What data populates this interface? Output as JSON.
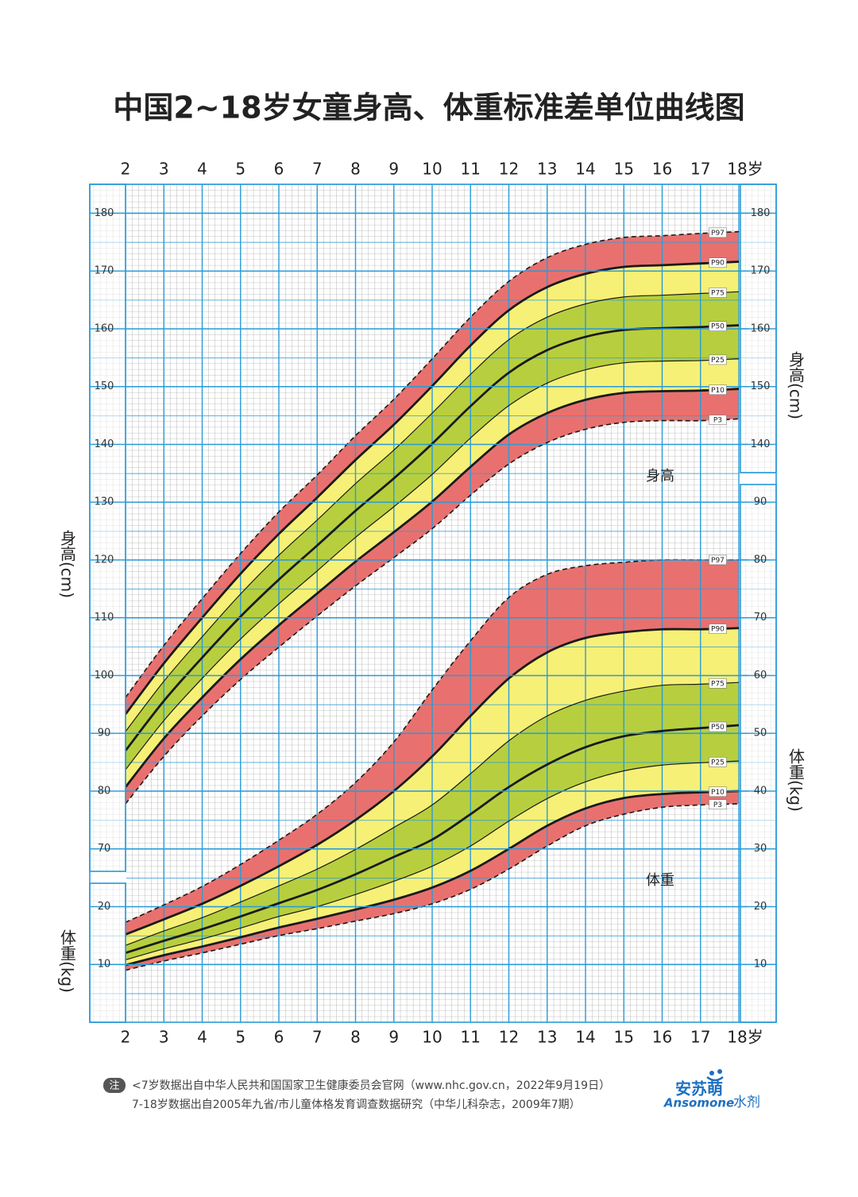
{
  "chart_data": [
    {
      "type": "line",
      "title": "中国2~18岁女童身高、体重标准差单位曲线图",
      "x": [
        2,
        3,
        4,
        5,
        6,
        7,
        8,
        9,
        10,
        11,
        12,
        13,
        14,
        15,
        16,
        17,
        18
      ],
      "xlim": [
        2,
        18
      ],
      "xticks": [
        2,
        3,
        4,
        5,
        6,
        7,
        8,
        9,
        10,
        11,
        12,
        13,
        14,
        15,
        16,
        17,
        {
          "value": 18,
          "label": "18岁"
        }
      ],
      "y_label": "身高(cm)",
      "annotation": "身高",
      "ylim": [
        40,
        185
      ],
      "yticks": [
        70,
        80,
        90,
        100,
        110,
        120,
        130,
        140,
        150,
        160,
        170,
        180
      ],
      "y2lim": [
        40,
        185
      ],
      "y2ticks": [
        140,
        150,
        160,
        170,
        180
      ],
      "grid": true,
      "series": [
        {
          "name": "P97",
          "color": "#1a1a1a",
          "style": "dashed",
          "fill": "#e8716f",
          "values": [
            96.2,
            105.2,
            113.3,
            121.1,
            128.3,
            134.7,
            141.5,
            147.8,
            154.8,
            162.0,
            168.2,
            172.3,
            174.6,
            175.8,
            176.1,
            176.5,
            176.8
          ]
        },
        {
          "name": "P90",
          "color": "#1a1a1a",
          "style": "thick",
          "fill": "#f7f076",
          "values": [
            93.3,
            102.1,
            110.0,
            117.6,
            124.5,
            130.8,
            137.3,
            143.4,
            150.1,
            157.1,
            163.2,
            167.2,
            169.5,
            170.7,
            171.0,
            171.3,
            171.6
          ]
        },
        {
          "name": "P75",
          "color": "#1a1a1a",
          "style": "thin",
          "fill": "#b7cf3e",
          "values": [
            90.3,
            99.0,
            106.7,
            114.1,
            120.8,
            126.9,
            133.2,
            139.0,
            145.4,
            152.1,
            158.1,
            162.0,
            164.3,
            165.5,
            165.8,
            166.1,
            166.4
          ]
        },
        {
          "name": "P50",
          "color": "#1a1a1a",
          "style": "thick",
          "fill": "#b7cf3e",
          "values": [
            87.0,
            95.6,
            103.1,
            110.2,
            116.6,
            122.5,
            128.5,
            134.1,
            140.1,
            146.6,
            152.4,
            156.3,
            158.6,
            159.8,
            160.1,
            160.3,
            160.6
          ]
        },
        {
          "name": "P25",
          "color": "#1a1a1a",
          "style": "thin",
          "fill": "#f7f076",
          "values": [
            83.7,
            92.2,
            99.5,
            106.3,
            112.4,
            118.1,
            123.9,
            129.2,
            134.8,
            141.1,
            146.7,
            150.6,
            152.9,
            154.1,
            154.4,
            154.5,
            154.8
          ]
        },
        {
          "name": "P10",
          "color": "#1a1a1a",
          "style": "thick",
          "fill": "#e8716f",
          "values": [
            80.7,
            89.1,
            96.2,
            102.8,
            108.7,
            114.2,
            119.7,
            124.8,
            130.1,
            136.1,
            141.7,
            145.4,
            147.7,
            148.9,
            149.2,
            149.3,
            149.6
          ]
        },
        {
          "name": "P3",
          "color": "#1a1a1a",
          "style": "dashed",
          "values": [
            77.8,
            86.0,
            93.0,
            99.3,
            104.9,
            110.3,
            115.5,
            120.4,
            125.4,
            131.2,
            136.6,
            140.3,
            142.6,
            143.8,
            144.1,
            144.1,
            144.4
          ]
        }
      ]
    },
    {
      "type": "line",
      "x": [
        2,
        3,
        4,
        5,
        6,
        7,
        8,
        9,
        10,
        11,
        12,
        13,
        14,
        15,
        16,
        17,
        18
      ],
      "xlim": [
        2,
        18
      ],
      "y_label": "体重(kg)",
      "annotation": "体重",
      "ylim": [
        0,
        145
      ],
      "yticks": [
        10,
        20
      ],
      "y2lim": [
        0,
        145
      ],
      "y2ticks": [
        10,
        20,
        30,
        40,
        50,
        60,
        70,
        80,
        90
      ],
      "grid": true,
      "series": [
        {
          "name": "P97",
          "color": "#1a1a1a",
          "style": "dashed",
          "fill": "#e8716f",
          "values": [
            17.3,
            20.3,
            23.5,
            27.3,
            31.5,
            36.0,
            41.5,
            48.5,
            57.5,
            66.0,
            73.5,
            77.5,
            79.0,
            79.6,
            80.0,
            80.0,
            80.0
          ]
        },
        {
          "name": "P90",
          "color": "#1a1a1a",
          "style": "thick",
          "fill": "#f7f076",
          "values": [
            15.2,
            17.8,
            20.5,
            23.6,
            27.0,
            30.7,
            35.0,
            40.0,
            46.0,
            53.0,
            59.5,
            64.0,
            66.5,
            67.5,
            68.0,
            68.0,
            68.2
          ]
        },
        {
          "name": "P75",
          "color": "#1a1a1a",
          "style": "thin",
          "fill": "#b7cf3e",
          "values": [
            13.3,
            15.8,
            18.1,
            20.8,
            23.6,
            26.5,
            29.9,
            33.7,
            37.6,
            43.0,
            48.7,
            53.0,
            55.7,
            57.3,
            58.3,
            58.5,
            58.8
          ]
        },
        {
          "name": "P50",
          "color": "#1a1a1a",
          "style": "thick",
          "fill": "#b7cf3e",
          "values": [
            12.0,
            14.1,
            16.1,
            18.3,
            20.6,
            22.9,
            25.6,
            28.6,
            31.6,
            36.0,
            40.7,
            44.6,
            47.6,
            49.5,
            50.4,
            50.9,
            51.4
          ]
        },
        {
          "name": "P25",
          "color": "#1a1a1a",
          "style": "thin",
          "fill": "#f7f076",
          "values": [
            10.8,
            12.7,
            14.4,
            16.3,
            18.3,
            20.0,
            22.1,
            24.4,
            27.0,
            30.5,
            34.8,
            38.7,
            41.6,
            43.5,
            44.5,
            44.9,
            45.2
          ]
        },
        {
          "name": "P10",
          "color": "#1a1a1a",
          "style": "thick",
          "fill": "#e8716f",
          "values": [
            9.9,
            11.6,
            13.1,
            14.7,
            16.4,
            17.9,
            19.5,
            21.2,
            23.3,
            26.2,
            30.0,
            34.0,
            37.0,
            38.8,
            39.5,
            39.8,
            40.0
          ]
        },
        {
          "name": "P3",
          "color": "#1a1a1a",
          "style": "dashed",
          "values": [
            9.0,
            10.6,
            12.0,
            13.5,
            15.0,
            16.2,
            17.5,
            18.8,
            20.5,
            23.0,
            26.5,
            30.5,
            34.0,
            36.0,
            37.2,
            37.6,
            37.8
          ]
        }
      ]
    }
  ],
  "note": {
    "tag": "注",
    "lines": [
      "<7岁数据出自中华人民共和国国家卫生健康委员会官网（www.nhc.gov.cn，2022年9月19日）",
      "7-18岁数据出自2005年九省/市儿童体格发育调查数据研究（中华儿科杂志，2009年7期）"
    ]
  },
  "brand": {
    "name": "安苏萌",
    "latin": "Ansomone",
    "suffix": "水剂"
  }
}
